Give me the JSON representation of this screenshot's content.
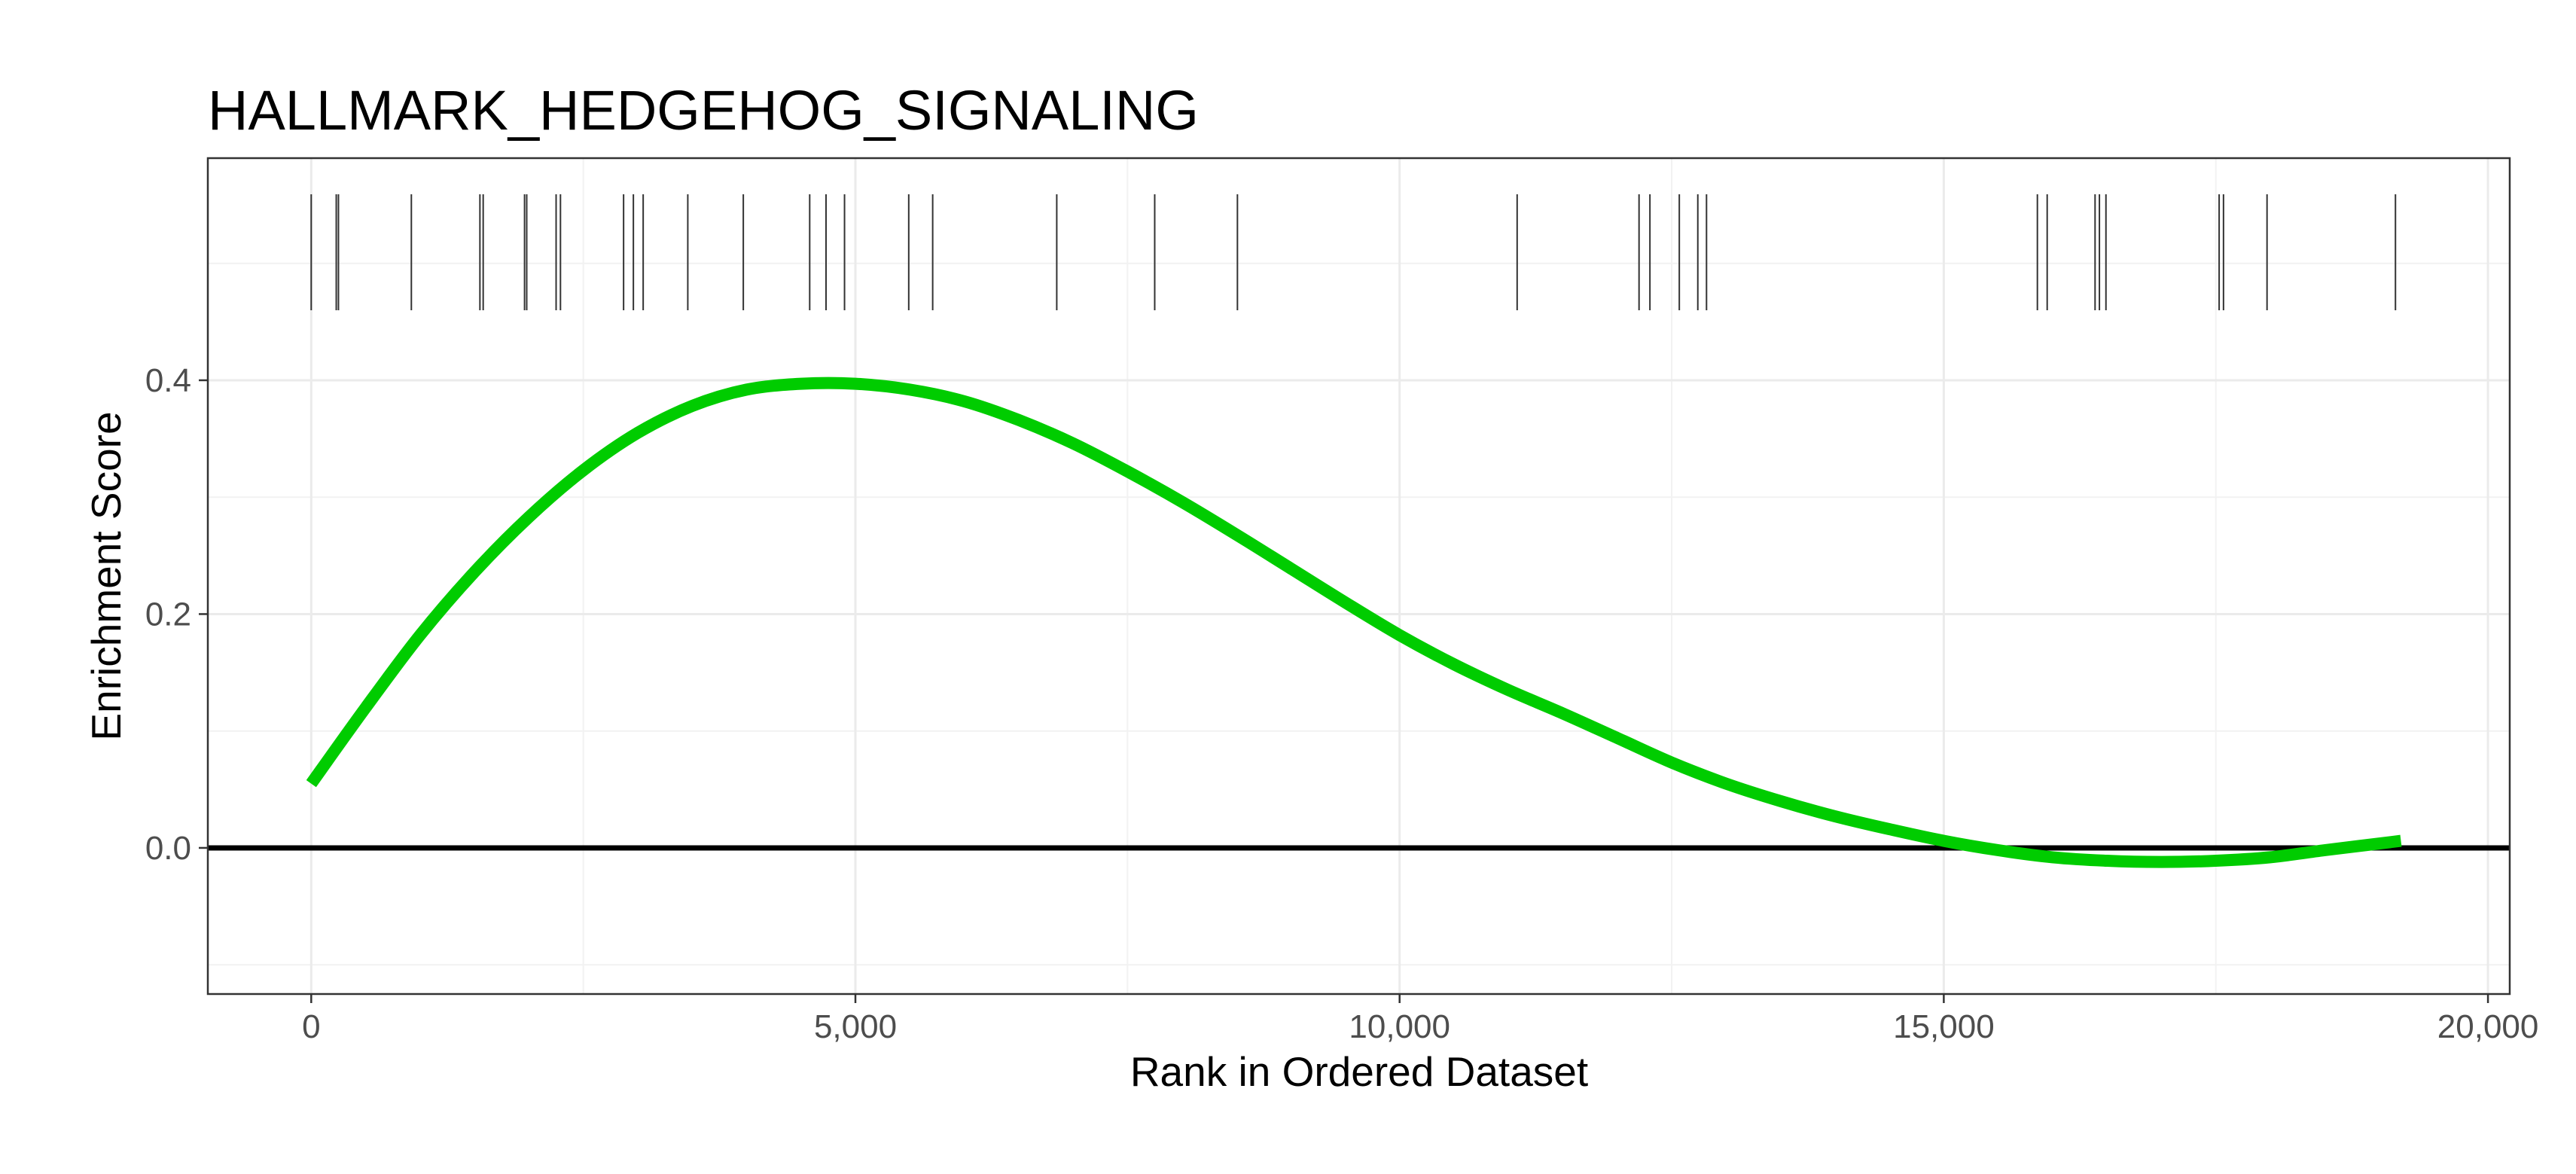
{
  "chart_data": {
    "type": "line",
    "title": "HALLMARK_HEDGEHOG_SIGNALING",
    "xlabel": "Rank in Ordered Dataset",
    "ylabel": "Enrichment Score",
    "xlim": [
      -950,
      20200
    ],
    "ylim": [
      -0.125,
      0.59
    ],
    "x_ticks": [
      {
        "value": 0,
        "label": "0"
      },
      {
        "value": 5000,
        "label": "5,000"
      },
      {
        "value": 10000,
        "label": "10,000"
      },
      {
        "value": 15000,
        "label": "15,000"
      },
      {
        "value": 20000,
        "label": "20,000"
      }
    ],
    "y_ticks": [
      {
        "value": 0.0,
        "label": "0.0"
      },
      {
        "value": 0.2,
        "label": "0.2"
      },
      {
        "value": 0.4,
        "label": "0.4"
      }
    ],
    "grid": true,
    "zero_line": 0.0,
    "series": [
      {
        "color": "#00cc00",
        "x": [
          0,
          500,
          1000,
          1500,
          2000,
          2500,
          3000,
          3500,
          4000,
          4500,
          5000,
          5500,
          6000,
          6500,
          7000,
          7500,
          8000,
          8500,
          9000,
          9500,
          10000,
          10500,
          11000,
          11500,
          12000,
          12500,
          13000,
          13500,
          14000,
          14500,
          15000,
          15500,
          16000,
          16500,
          17000,
          17500,
          18000,
          18500,
          19200
        ],
        "y": [
          0.055,
          0.12,
          0.182,
          0.236,
          0.283,
          0.323,
          0.355,
          0.378,
          0.392,
          0.397,
          0.397,
          0.392,
          0.382,
          0.366,
          0.346,
          0.322,
          0.296,
          0.268,
          0.239,
          0.21,
          0.182,
          0.157,
          0.135,
          0.115,
          0.094,
          0.073,
          0.055,
          0.04,
          0.027,
          0.016,
          0.006,
          -0.002,
          -0.008,
          -0.011,
          -0.012,
          -0.011,
          -0.008,
          -0.002,
          0.006
        ]
      }
    ],
    "gene_hits": [
      0,
      230,
      250,
      920,
      1550,
      1580,
      1960,
      1980,
      2250,
      2290,
      2870,
      2960,
      3050,
      3460,
      3970,
      4580,
      4730,
      4900,
      5490,
      5710,
      6850,
      7750,
      8510,
      11080,
      12200,
      12300,
      12570,
      12740,
      12820,
      15860,
      15950,
      16390,
      16430,
      16490,
      17530,
      17570,
      17970,
      19150
    ]
  }
}
